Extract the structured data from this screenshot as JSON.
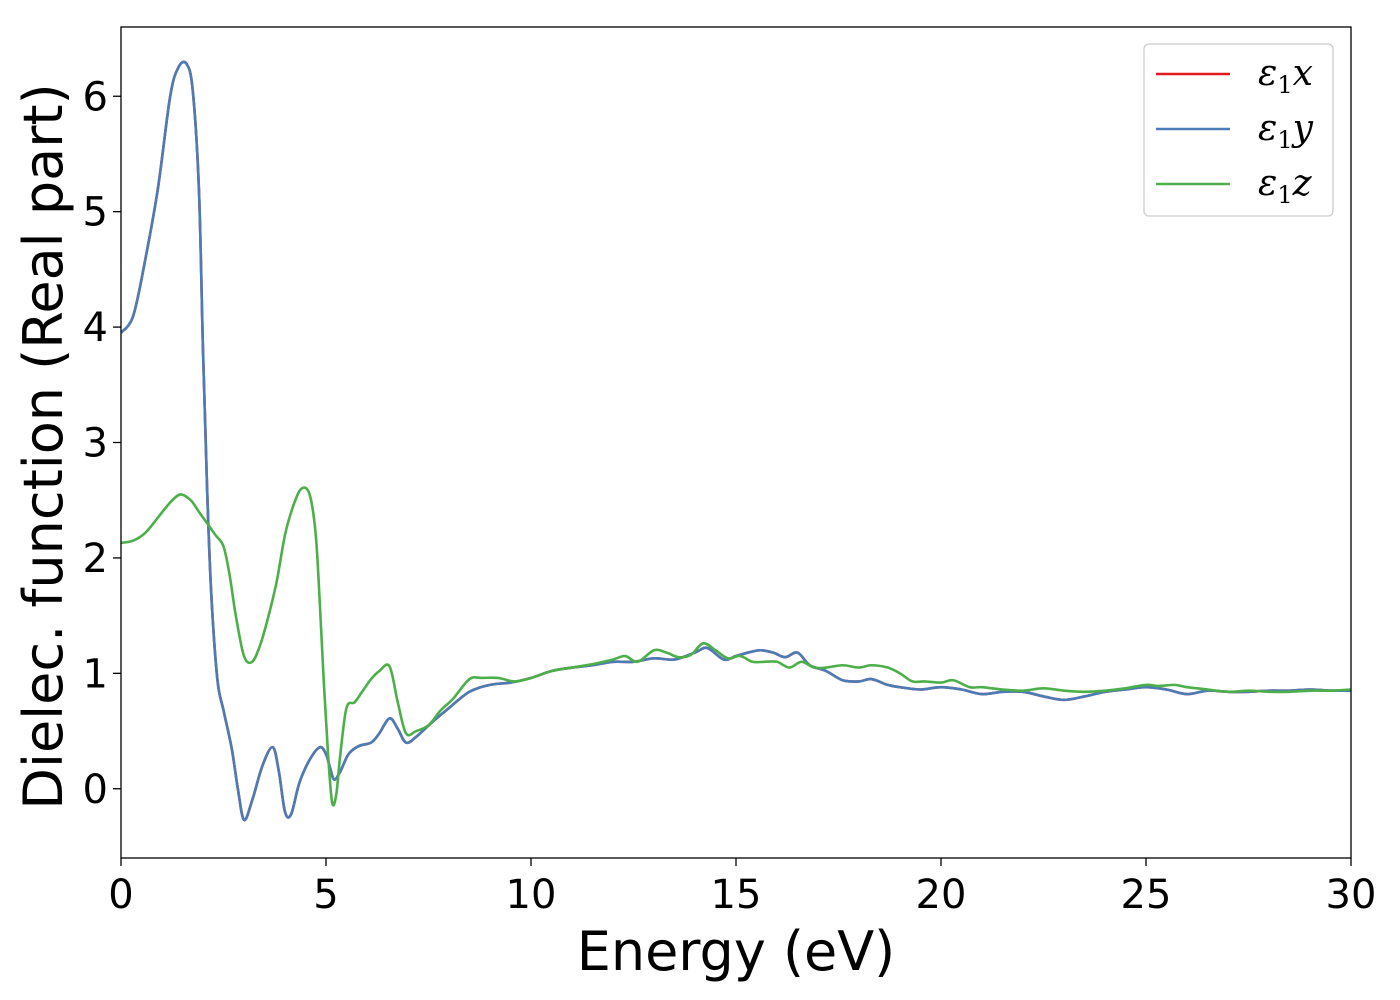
{
  "chart_data": {
    "type": "line",
    "title": "",
    "xlabel": "Energy (eV)",
    "ylabel": "Dielec. function (Real part)",
    "xlim": [
      0,
      30
    ],
    "ylim": [
      -0.6,
      6.6
    ],
    "xticks": [
      0,
      5,
      10,
      15,
      20,
      25,
      30
    ],
    "yticks": [
      0,
      1,
      2,
      3,
      4,
      5,
      6
    ],
    "grid": false,
    "legend_position": "top-right",
    "series": [
      {
        "name": "ε1x",
        "legend_base": "ε",
        "legend_sub": "1",
        "legend_suffix": "x",
        "color": "#e41a1c",
        "x": [
          0,
          0.3,
          0.6,
          0.9,
          1.2,
          1.4,
          1.6,
          1.75,
          1.9,
          2.0,
          2.1,
          2.2,
          2.35,
          2.5,
          2.7,
          2.85,
          3.0,
          3.2,
          3.45,
          3.7,
          3.85,
          4.0,
          4.15,
          4.35,
          4.6,
          4.85,
          5.0,
          5.1,
          5.2,
          5.35,
          5.55,
          5.8,
          6.1,
          6.3,
          6.55,
          6.75,
          6.95,
          7.2,
          7.6,
          8.0,
          8.5,
          9.0,
          9.5,
          10.0,
          10.5,
          11.0,
          11.5,
          12.0,
          12.5,
          13.0,
          13.5,
          14.0,
          14.3,
          14.7,
          15.0,
          15.3,
          15.6,
          15.9,
          16.2,
          16.5,
          16.8,
          17.2,
          17.6,
          18.0,
          18.3,
          18.7,
          19.0,
          19.5,
          20.0,
          20.5,
          21.0,
          21.5,
          22.0,
          22.5,
          23.0,
          23.5,
          24.0,
          24.5,
          25.0,
          25.5,
          26.0,
          26.5,
          27.0,
          27.5,
          28.0,
          28.5,
          29.0,
          29.5,
          30.0
        ],
        "values": [
          3.95,
          4.1,
          4.6,
          5.2,
          6.0,
          6.25,
          6.28,
          6.05,
          5.2,
          3.8,
          2.6,
          1.7,
          0.95,
          0.68,
          0.35,
          0.0,
          -0.27,
          -0.1,
          0.2,
          0.36,
          0.15,
          -0.2,
          -0.22,
          0.05,
          0.25,
          0.36,
          0.3,
          0.18,
          0.08,
          0.15,
          0.3,
          0.37,
          0.4,
          0.48,
          0.61,
          0.52,
          0.4,
          0.45,
          0.58,
          0.7,
          0.84,
          0.9,
          0.92,
          0.96,
          1.02,
          1.05,
          1.07,
          1.1,
          1.1,
          1.13,
          1.12,
          1.18,
          1.22,
          1.12,
          1.15,
          1.18,
          1.2,
          1.18,
          1.14,
          1.18,
          1.07,
          1.02,
          0.94,
          0.93,
          0.95,
          0.9,
          0.88,
          0.86,
          0.88,
          0.86,
          0.82,
          0.84,
          0.84,
          0.8,
          0.77,
          0.8,
          0.84,
          0.86,
          0.88,
          0.86,
          0.82,
          0.85,
          0.84,
          0.84,
          0.85,
          0.85,
          0.86,
          0.85,
          0.85
        ]
      },
      {
        "name": "ε1y",
        "legend_base": "ε",
        "legend_sub": "1",
        "legend_suffix": "y",
        "color": "#4a7db8",
        "x": [
          0,
          0.3,
          0.6,
          0.9,
          1.2,
          1.4,
          1.6,
          1.75,
          1.9,
          2.0,
          2.1,
          2.2,
          2.35,
          2.5,
          2.7,
          2.85,
          3.0,
          3.2,
          3.45,
          3.7,
          3.85,
          4.0,
          4.15,
          4.35,
          4.6,
          4.85,
          5.0,
          5.1,
          5.2,
          5.35,
          5.55,
          5.8,
          6.1,
          6.3,
          6.55,
          6.75,
          6.95,
          7.2,
          7.6,
          8.0,
          8.5,
          9.0,
          9.5,
          10.0,
          10.5,
          11.0,
          11.5,
          12.0,
          12.5,
          13.0,
          13.5,
          14.0,
          14.3,
          14.7,
          15.0,
          15.3,
          15.6,
          15.9,
          16.2,
          16.5,
          16.8,
          17.2,
          17.6,
          18.0,
          18.3,
          18.7,
          19.0,
          19.5,
          20.0,
          20.5,
          21.0,
          21.5,
          22.0,
          22.5,
          23.0,
          23.5,
          24.0,
          24.5,
          25.0,
          25.5,
          26.0,
          26.5,
          27.0,
          27.5,
          28.0,
          28.5,
          29.0,
          29.5,
          30.0
        ],
        "values": [
          3.95,
          4.1,
          4.6,
          5.2,
          6.0,
          6.25,
          6.28,
          6.05,
          5.2,
          3.8,
          2.6,
          1.7,
          0.95,
          0.68,
          0.35,
          0.0,
          -0.27,
          -0.1,
          0.2,
          0.36,
          0.15,
          -0.2,
          -0.22,
          0.05,
          0.25,
          0.36,
          0.3,
          0.18,
          0.08,
          0.15,
          0.3,
          0.37,
          0.4,
          0.48,
          0.61,
          0.52,
          0.4,
          0.45,
          0.58,
          0.7,
          0.84,
          0.9,
          0.92,
          0.96,
          1.02,
          1.05,
          1.07,
          1.1,
          1.1,
          1.13,
          1.12,
          1.18,
          1.22,
          1.12,
          1.15,
          1.18,
          1.2,
          1.18,
          1.14,
          1.18,
          1.07,
          1.02,
          0.94,
          0.93,
          0.95,
          0.9,
          0.88,
          0.86,
          0.88,
          0.86,
          0.82,
          0.84,
          0.84,
          0.8,
          0.77,
          0.8,
          0.84,
          0.86,
          0.88,
          0.86,
          0.82,
          0.85,
          0.84,
          0.84,
          0.85,
          0.85,
          0.86,
          0.85,
          0.85
        ]
      },
      {
        "name": "ε1z",
        "legend_base": "ε",
        "legend_sub": "1",
        "legend_suffix": "z",
        "color": "#4daf4a",
        "x": [
          0,
          0.3,
          0.6,
          0.9,
          1.2,
          1.45,
          1.7,
          1.9,
          2.1,
          2.3,
          2.5,
          2.65,
          2.8,
          3.0,
          3.2,
          3.4,
          3.6,
          3.8,
          4.0,
          4.2,
          4.4,
          4.6,
          4.75,
          4.85,
          4.95,
          5.05,
          5.15,
          5.25,
          5.35,
          5.5,
          5.7,
          5.9,
          6.1,
          6.3,
          6.55,
          6.75,
          6.95,
          7.2,
          7.5,
          7.8,
          8.1,
          8.5,
          8.8,
          9.2,
          9.6,
          10.0,
          10.5,
          11.0,
          11.5,
          12.0,
          12.3,
          12.6,
          13.0,
          13.3,
          13.6,
          13.9,
          14.2,
          14.5,
          14.8,
          15.1,
          15.4,
          15.7,
          16.0,
          16.3,
          16.6,
          16.9,
          17.2,
          17.6,
          18.0,
          18.3,
          18.7,
          19.0,
          19.3,
          19.6,
          20.0,
          20.3,
          20.7,
          21.0,
          21.5,
          22.0,
          22.5,
          23.0,
          23.5,
          24.0,
          24.5,
          25.0,
          25.3,
          25.7,
          26.0,
          26.5,
          27.0,
          27.5,
          28.0,
          28.5,
          29.0,
          29.5,
          30.0
        ],
        "values": [
          2.13,
          2.15,
          2.22,
          2.35,
          2.48,
          2.55,
          2.5,
          2.4,
          2.3,
          2.2,
          2.1,
          1.85,
          1.5,
          1.15,
          1.1,
          1.25,
          1.5,
          1.8,
          2.2,
          2.45,
          2.6,
          2.55,
          2.2,
          1.6,
          0.9,
          0.3,
          -0.12,
          -0.05,
          0.3,
          0.7,
          0.75,
          0.85,
          0.95,
          1.02,
          1.06,
          0.75,
          0.48,
          0.5,
          0.55,
          0.68,
          0.78,
          0.95,
          0.96,
          0.96,
          0.93,
          0.96,
          1.02,
          1.05,
          1.08,
          1.12,
          1.15,
          1.1,
          1.2,
          1.18,
          1.14,
          1.16,
          1.26,
          1.2,
          1.13,
          1.15,
          1.1,
          1.1,
          1.1,
          1.05,
          1.1,
          1.05,
          1.05,
          1.07,
          1.05,
          1.07,
          1.05,
          1.0,
          0.93,
          0.93,
          0.92,
          0.94,
          0.88,
          0.88,
          0.86,
          0.85,
          0.87,
          0.85,
          0.84,
          0.85,
          0.87,
          0.9,
          0.89,
          0.9,
          0.88,
          0.86,
          0.84,
          0.85,
          0.84,
          0.84,
          0.85,
          0.85,
          0.86
        ]
      }
    ]
  }
}
